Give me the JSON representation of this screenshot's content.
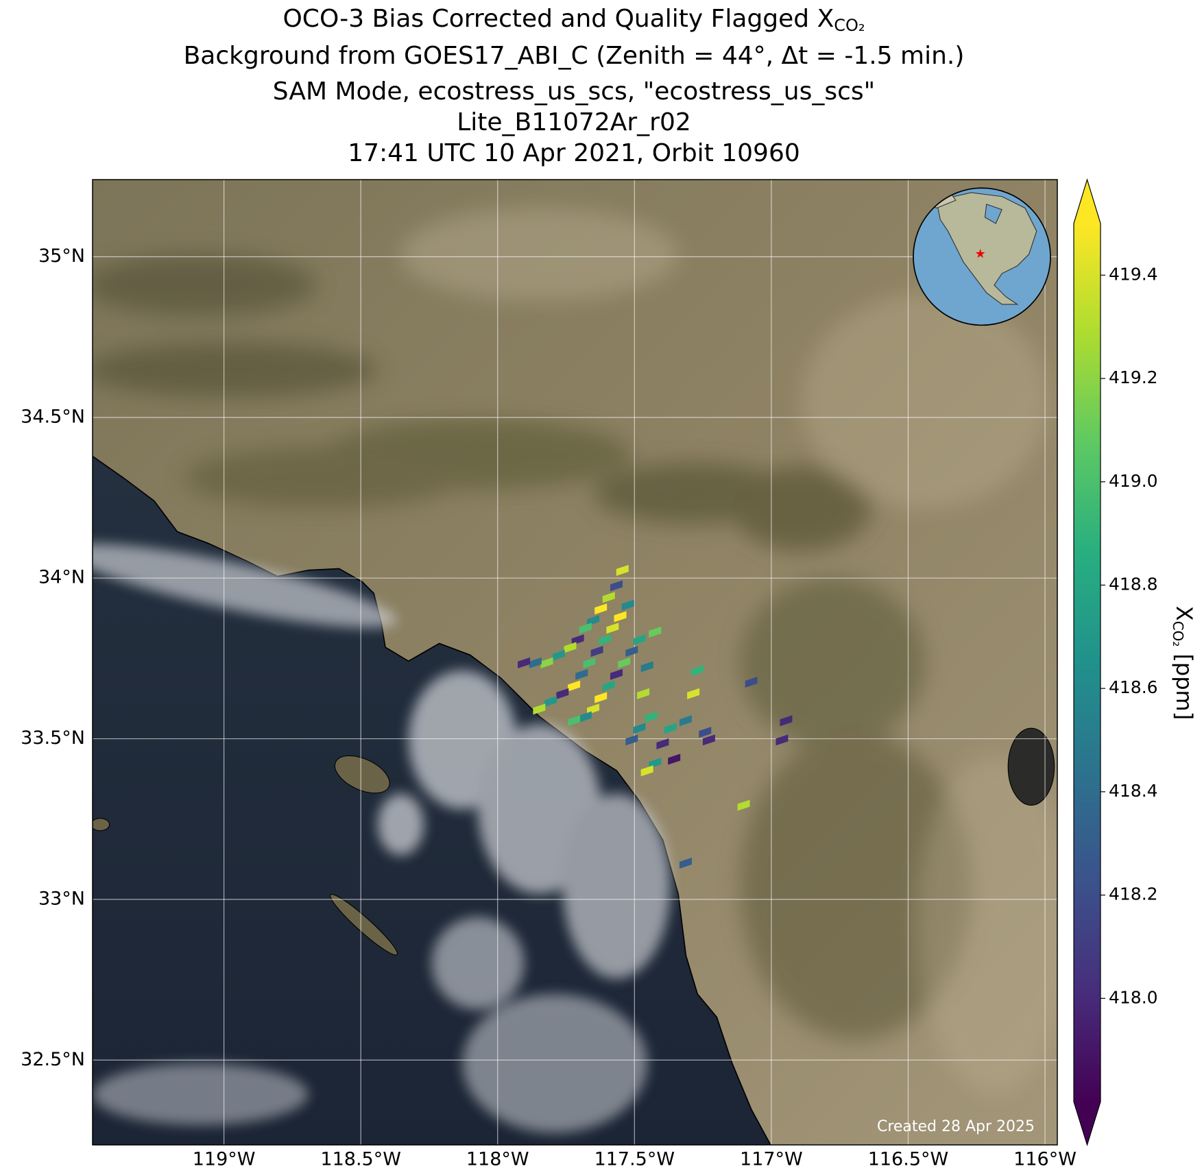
{
  "chart_data": {
    "type": "map",
    "title": [
      "OCO-3 Bias Corrected and Quality Flagged X",
      "Background from GOES17_ABI_C (Zenith = 44°, Δt = -1.5 min.)",
      "SAM Mode, ecostress_us_scs, \"ecostress_us_scs\"",
      "Lite_B11072Ar_r02",
      "17:41 UTC 10 Apr 2021, Orbit 10960"
    ],
    "title_subscript": "CO₂",
    "xlim": [
      -119.48,
      -115.955
    ],
    "ylim": [
      32.236,
      35.24
    ],
    "xticks": [
      {
        "value": -119,
        "label": "119°W"
      },
      {
        "value": -118.5,
        "label": "118.5°W"
      },
      {
        "value": -118,
        "label": "118°W"
      },
      {
        "value": -117.5,
        "label": "117.5°W"
      },
      {
        "value": -117,
        "label": "117°W"
      },
      {
        "value": -116.5,
        "label": "116.5°W"
      },
      {
        "value": -116,
        "label": "116°W"
      }
    ],
    "yticks": [
      {
        "value": 32.5,
        "label": "32.5°N"
      },
      {
        "value": 33,
        "label": "33°N"
      },
      {
        "value": 33.5,
        "label": "33.5°N"
      },
      {
        "value": 34,
        "label": "34°N"
      },
      {
        "value": 34.5,
        "label": "34.5°N"
      },
      {
        "value": 35,
        "label": "35°N"
      }
    ],
    "grid": true,
    "points": {
      "lon": [
        -117.544,
        -117.566,
        -117.594,
        -117.623,
        -117.651,
        -117.679,
        -117.707,
        -117.735,
        -117.777,
        -117.82,
        -117.862,
        -117.904,
        -117.524,
        -117.552,
        -117.58,
        -117.608,
        -117.637,
        -117.665,
        -117.693,
        -117.721,
        -117.763,
        -117.806,
        -117.848,
        -117.482,
        -117.51,
        -117.538,
        -117.566,
        -117.594,
        -117.623,
        -117.651,
        -117.679,
        -117.721,
        -117.425,
        -117.454,
        -117.468,
        -117.439,
        -117.482,
        -117.51,
        -117.397,
        -117.355,
        -117.425,
        -117.369,
        -117.313,
        -117.27,
        -117.285,
        -117.242,
        -117.228,
        -117.073,
        -116.961,
        -116.946,
        -117.101,
        -117.313,
        -117.454
      ],
      "lat": [
        34.024,
        33.976,
        33.94,
        33.904,
        33.868,
        33.844,
        33.808,
        33.784,
        33.76,
        33.736,
        33.736,
        33.736,
        33.916,
        33.88,
        33.844,
        33.808,
        33.772,
        33.736,
        33.7,
        33.664,
        33.64,
        33.616,
        33.592,
        33.808,
        33.772,
        33.736,
        33.7,
        33.664,
        33.628,
        33.592,
        33.568,
        33.556,
        33.832,
        33.724,
        33.64,
        33.568,
        33.532,
        33.496,
        33.484,
        33.436,
        33.424,
        33.532,
        33.556,
        33.712,
        33.64,
        33.52,
        33.496,
        33.676,
        33.496,
        33.556,
        33.293,
        33.113,
        33.4
      ],
      "values": [
        419.4,
        418.2,
        419.3,
        419.5,
        418.6,
        419.0,
        418.0,
        419.3,
        418.7,
        419.2,
        418.4,
        418.0,
        418.6,
        419.5,
        419.4,
        418.9,
        418.1,
        419.0,
        418.4,
        419.5,
        418.0,
        418.7,
        419.3,
        418.8,
        418.3,
        419.1,
        418.0,
        418.8,
        419.5,
        419.4,
        418.6,
        419.0,
        419.1,
        418.5,
        419.3,
        418.9,
        418.6,
        418.3,
        418.0,
        417.9,
        418.7,
        418.8,
        418.5,
        418.9,
        419.4,
        418.2,
        418.0,
        418.2,
        418.0,
        418.0,
        419.3,
        418.3,
        419.4
      ]
    },
    "colormap": [
      "#440154",
      "#472d7b",
      "#3b528b",
      "#2c728e",
      "#21918c",
      "#28ae80",
      "#5ec962",
      "#addc30",
      "#fde725"
    ],
    "clim": [
      417.8,
      419.5
    ],
    "cticks": [
      {
        "value": 418.0,
        "label": "418.0"
      },
      {
        "value": 418.2,
        "label": "418.2"
      },
      {
        "value": 418.4,
        "label": "418.4"
      },
      {
        "value": 418.6,
        "label": "418.6"
      },
      {
        "value": 418.8,
        "label": "418.8"
      },
      {
        "value": 419.0,
        "label": "419.0"
      },
      {
        "value": 419.2,
        "label": "419.2"
      },
      {
        "value": 419.4,
        "label": "419.4"
      }
    ],
    "colorbar_label": {
      "symbol": "X",
      "subscript": "CO₂",
      "unit": "[ppm]"
    },
    "credit": "Created 28 Apr 2025"
  }
}
